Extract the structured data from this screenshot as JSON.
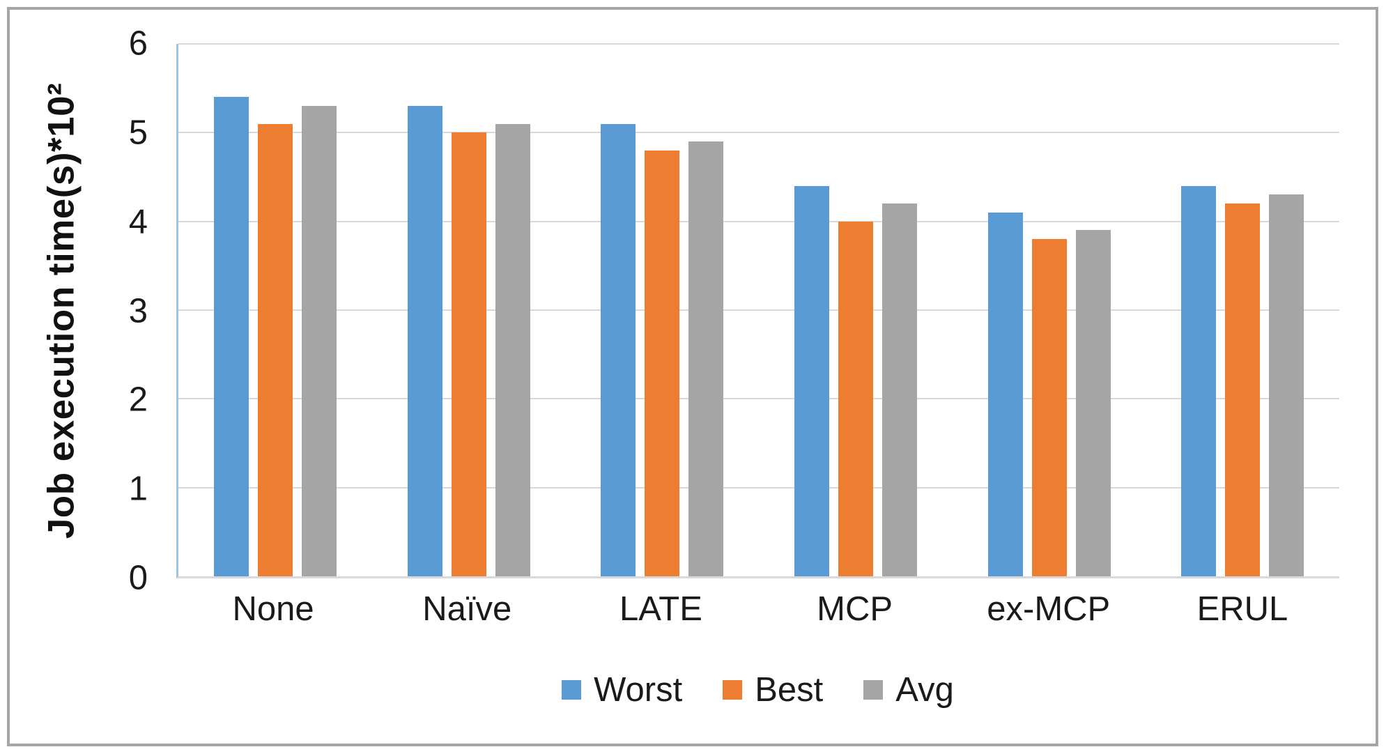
{
  "chart_data": {
    "type": "bar",
    "title": "",
    "categories": [
      "None",
      "Naïve",
      "LATE",
      "MCP",
      "ex-MCP",
      "ERUL"
    ],
    "series": [
      {
        "name": "Worst",
        "color": "#5b9bd5",
        "values": [
          5.4,
          5.3,
          5.1,
          4.4,
          4.1,
          4.4
        ]
      },
      {
        "name": "Best",
        "color": "#ed7d31",
        "values": [
          5.1,
          5.0,
          4.8,
          4.0,
          3.8,
          4.2
        ]
      },
      {
        "name": "Avg",
        "color": "#a5a5a5",
        "values": [
          5.3,
          5.1,
          4.9,
          4.2,
          3.9,
          4.3
        ]
      }
    ],
    "xlabel": "",
    "ylabel": "Job execution time(s)*10²",
    "ylim": [
      0,
      6
    ],
    "yticks": [
      0,
      1,
      2,
      3,
      4,
      5,
      6
    ],
    "grid": true,
    "legend_position": "bottom"
  },
  "style_colors": {
    "gridline": "#d9d9d9",
    "y_axis_line": "#9dc3e6",
    "x_axis_line": "#d9d9d9",
    "figure_border": "#a6a6a6",
    "text": "#1a1a1a"
  }
}
